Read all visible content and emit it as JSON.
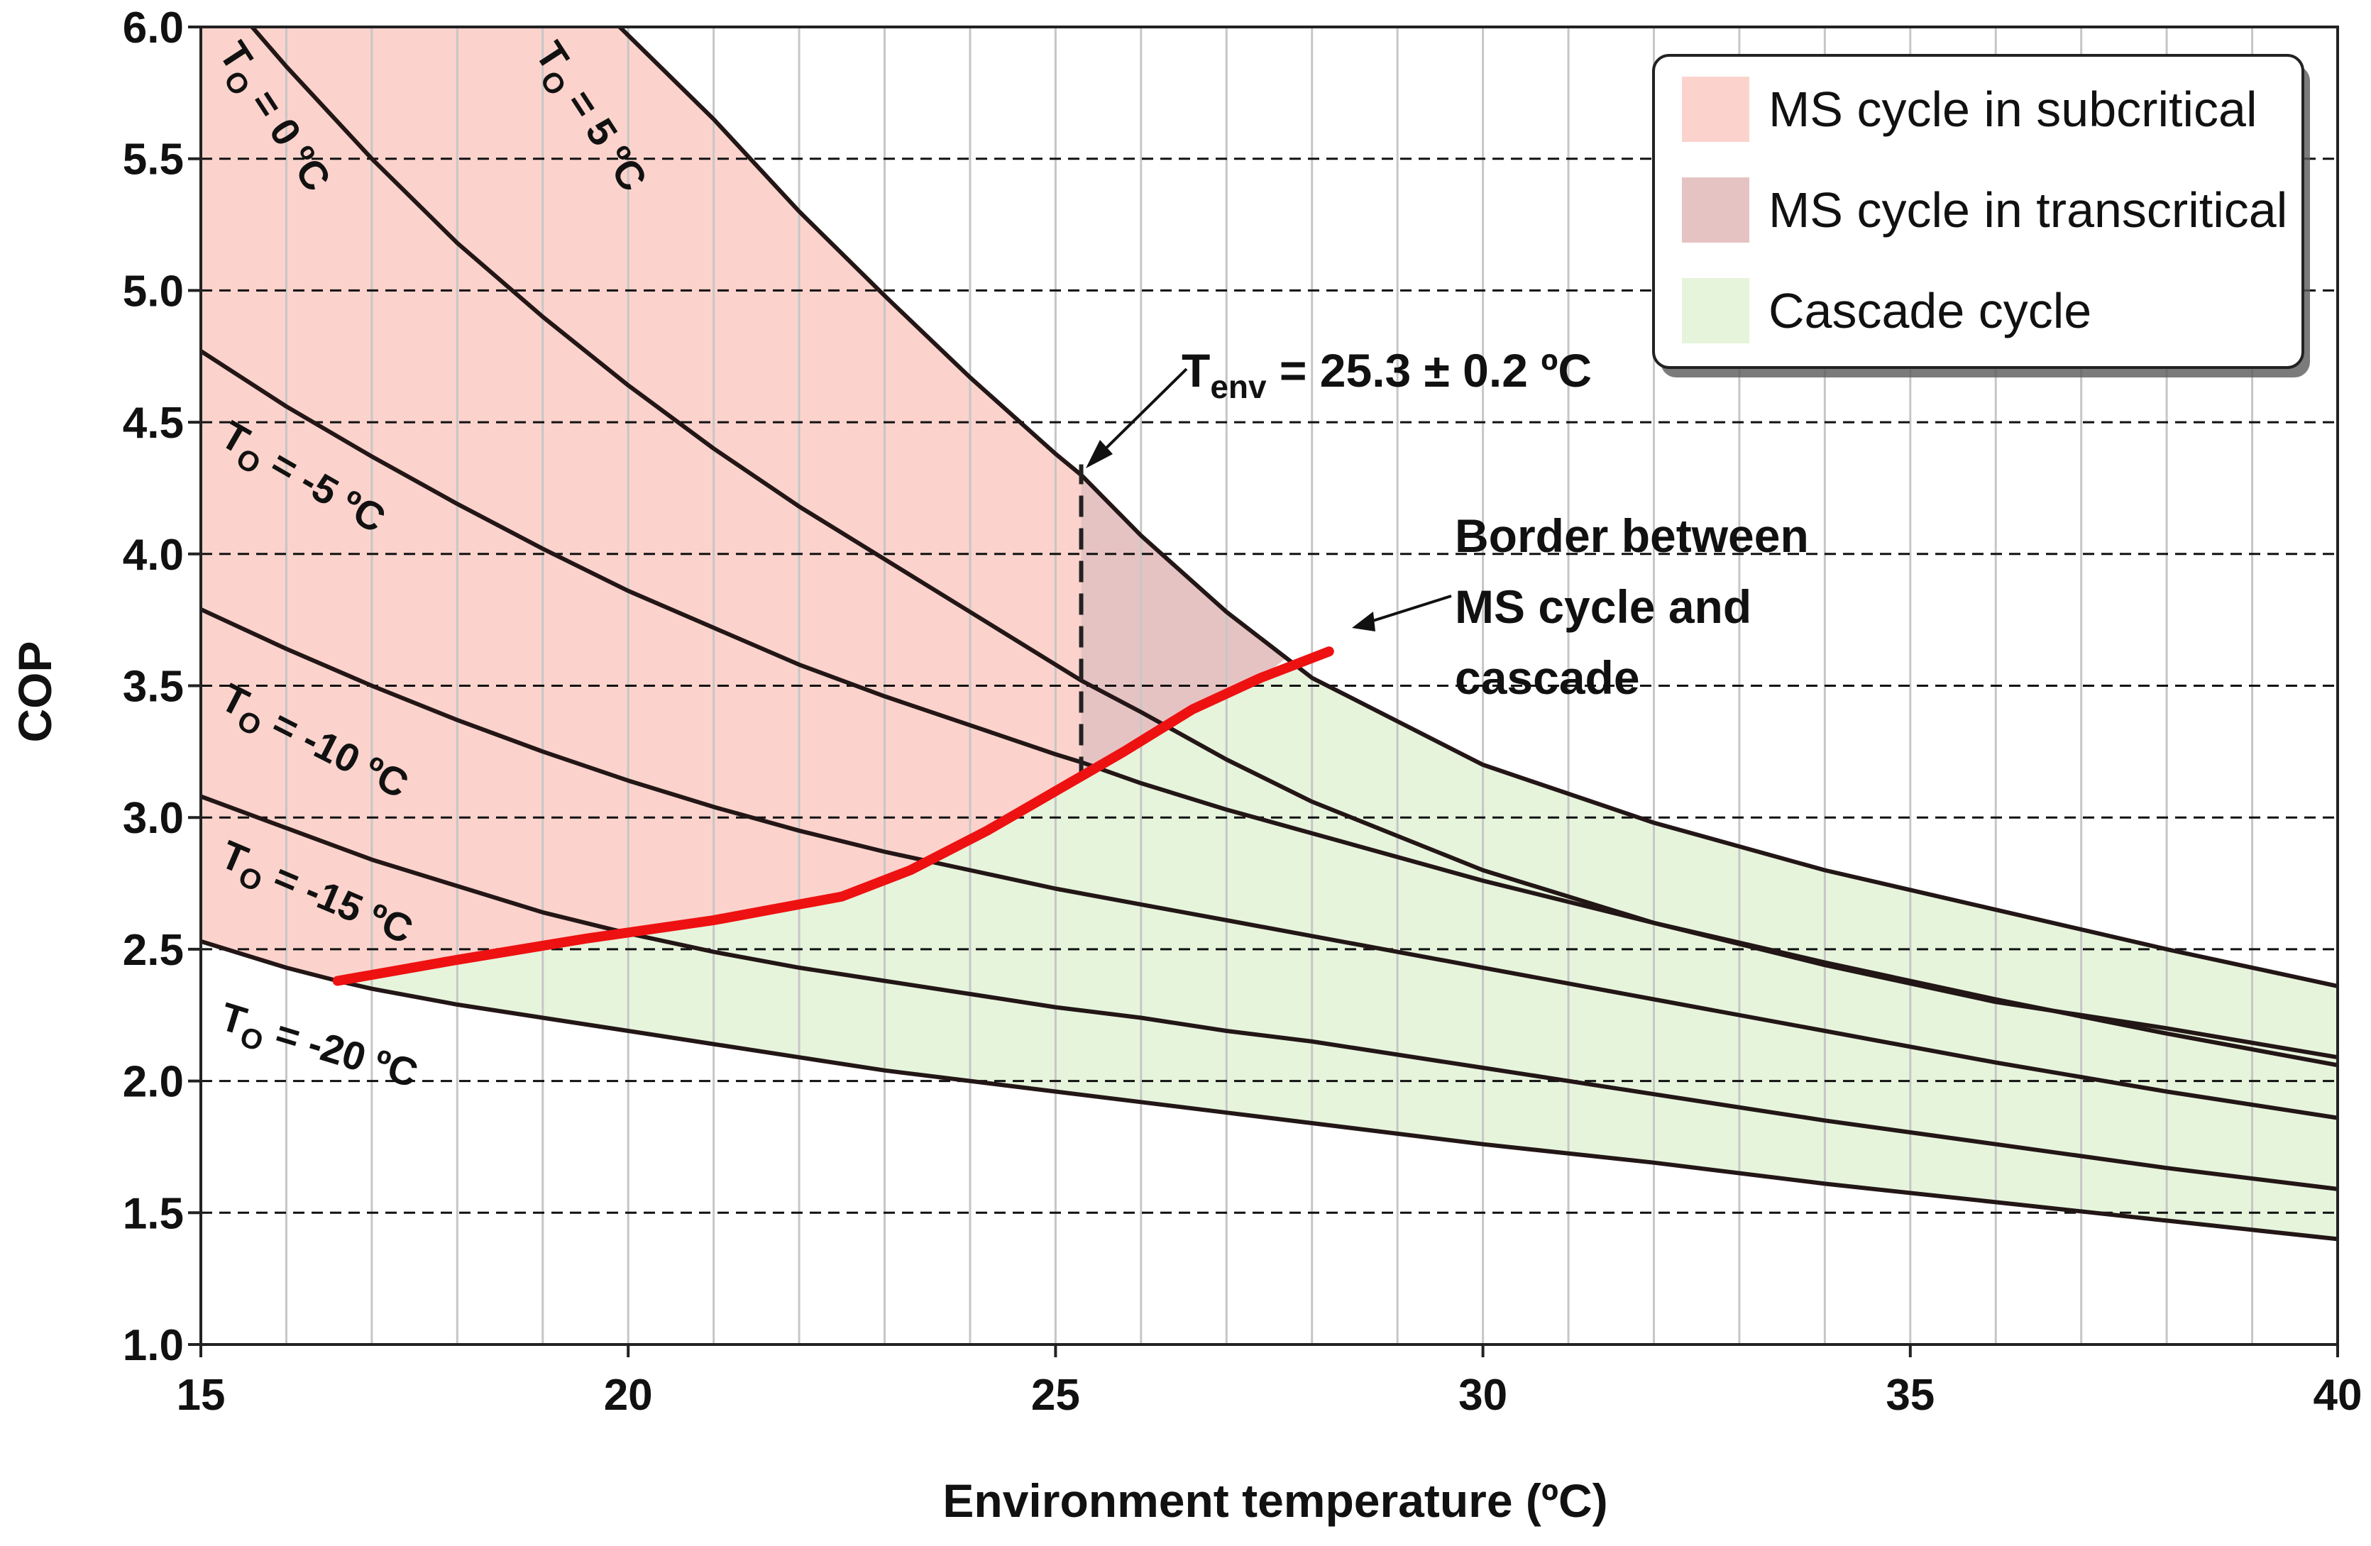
{
  "chart_data": {
    "type": "line",
    "title": "",
    "xlabel": "Environment temperature (ºC)",
    "ylabel": "COP",
    "xlim": [
      15,
      40
    ],
    "ylim": [
      1.0,
      6.0
    ],
    "x_ticks": [
      15,
      20,
      25,
      30,
      35,
      40
    ],
    "x_tick_labels": [
      "15",
      "20",
      "25",
      "30",
      "35",
      "40"
    ],
    "x_minor_step": 1,
    "y_ticks": [
      1.0,
      1.5,
      2.0,
      2.5,
      3.0,
      3.5,
      4.0,
      4.5,
      5.0,
      5.5,
      6.0
    ],
    "y_tick_labels": [
      "1.0",
      "1.5",
      "2.0",
      "2.5",
      "3.0",
      "3.5",
      "4.0",
      "4.5",
      "5.0",
      "5.5",
      "6.0"
    ],
    "grid": {
      "x_minor": true,
      "y_major_dashed": true
    },
    "series": [
      {
        "name": "T_O = 5 ºC",
        "label_sub": "O",
        "label_text": " = 5 ºC",
        "label_anchor": [
          18.9,
          5.9
        ],
        "label_angle": 57,
        "x": [
          19.9,
          21,
          22,
          23,
          24,
          25,
          25.3,
          26,
          27,
          28,
          30,
          32,
          34,
          36,
          38,
          40
        ],
        "y": [
          6.0,
          5.65,
          5.3,
          4.98,
          4.67,
          4.38,
          4.3,
          4.07,
          3.78,
          3.53,
          3.2,
          2.98,
          2.8,
          2.65,
          2.5,
          2.36
        ]
      },
      {
        "name": "T_O = 0 ºC",
        "label_sub": "O",
        "label_text": " = 0 ºC",
        "label_anchor": [
          15.2,
          5.9
        ],
        "label_angle": 57,
        "x": [
          15.6,
          16,
          17,
          18,
          19,
          20,
          21,
          22,
          23,
          24,
          25,
          25.3,
          26,
          27,
          28,
          30,
          32,
          34,
          36,
          38,
          40
        ],
        "y": [
          6.0,
          5.85,
          5.5,
          5.18,
          4.9,
          4.64,
          4.4,
          4.18,
          3.98,
          3.78,
          3.58,
          3.52,
          3.4,
          3.22,
          3.06,
          2.8,
          2.6,
          2.44,
          2.3,
          2.2,
          2.09
        ]
      },
      {
        "name": "T_O = -5 ºC",
        "label_sub": "O",
        "label_text": " = -5 ºC",
        "label_anchor": [
          15.2,
          4.42
        ],
        "label_angle": 30,
        "x": [
          15,
          16,
          17,
          18,
          19,
          20,
          21,
          22,
          23,
          24,
          25,
          25.3,
          26,
          27,
          28,
          30,
          32,
          34,
          36,
          38,
          40
        ],
        "y": [
          4.77,
          4.56,
          4.37,
          4.19,
          4.02,
          3.86,
          3.72,
          3.58,
          3.46,
          3.35,
          3.24,
          3.21,
          3.13,
          3.03,
          2.94,
          2.76,
          2.6,
          2.45,
          2.31,
          2.18,
          2.06
        ]
      },
      {
        "name": "T_O = -10 ºC",
        "label_sub": "O",
        "label_text": " = -10 ºC",
        "label_anchor": [
          15.2,
          3.42
        ],
        "label_angle": 27,
        "x": [
          15,
          16,
          17,
          18,
          19,
          20,
          21,
          22,
          23,
          24,
          25,
          26,
          27,
          28,
          30,
          32,
          34,
          36,
          38,
          40
        ],
        "y": [
          3.79,
          3.64,
          3.5,
          3.37,
          3.25,
          3.14,
          3.04,
          2.95,
          2.87,
          2.8,
          2.73,
          2.67,
          2.61,
          2.55,
          2.43,
          2.31,
          2.19,
          2.07,
          1.96,
          1.86
        ]
      },
      {
        "name": "T_O = -15 ºC",
        "label_sub": "O",
        "label_text": " = -15 ºC",
        "label_anchor": [
          15.2,
          2.82
        ],
        "label_angle": 23,
        "x": [
          15,
          16,
          17,
          18,
          19,
          20,
          21,
          22,
          23,
          24,
          25,
          26,
          27,
          28,
          30,
          32,
          34,
          36,
          38,
          40
        ],
        "y": [
          3.08,
          2.96,
          2.84,
          2.74,
          2.64,
          2.56,
          2.49,
          2.43,
          2.38,
          2.33,
          2.28,
          2.24,
          2.19,
          2.15,
          2.05,
          1.95,
          1.85,
          1.76,
          1.67,
          1.59
        ]
      },
      {
        "name": "T_O = -20 ºC",
        "label_sub": "O",
        "label_text": " = -20 ºC",
        "label_anchor": [
          15.2,
          2.2
        ],
        "label_angle": 17,
        "x": [
          15,
          16,
          16.6,
          17,
          18,
          19,
          20,
          21,
          22,
          23,
          24,
          25,
          26,
          27,
          28,
          30,
          32,
          34,
          36,
          38,
          40
        ],
        "y": [
          2.53,
          2.43,
          2.38,
          2.35,
          2.29,
          2.24,
          2.19,
          2.14,
          2.09,
          2.04,
          2.0,
          1.96,
          1.92,
          1.88,
          1.84,
          1.76,
          1.69,
          1.61,
          1.54,
          1.47,
          1.4
        ]
      }
    ],
    "border_curve": {
      "name": "Border between MS cycle and cascade",
      "color": "#ee1111",
      "x": [
        16.6,
        18,
        19.5,
        21,
        22.5,
        23.3,
        24.2,
        25,
        25.8,
        26.6,
        27.4,
        28.2
      ],
      "y": [
        2.38,
        2.46,
        2.54,
        2.61,
        2.7,
        2.8,
        2.95,
        3.1,
        3.25,
        3.41,
        3.53,
        3.63
      ]
    },
    "t_env_line": {
      "x": 25.3,
      "y_range": [
        3.15,
        4.34
      ]
    },
    "regions": [
      {
        "name": "MS cycle in subcritical",
        "color": "#fbd3cc"
      },
      {
        "name": "MS cycle in transcritical",
        "color": "#e6c3c3"
      },
      {
        "name": "Cascade cycle",
        "color": "#e6f4dc"
      }
    ],
    "annotations": {
      "t_env_prefix": "T",
      "t_env_sub": "env",
      "t_env_value": " = 25.3 ± 0.2 ºC",
      "border_lines": [
        "Border between",
        "MS cycle and",
        "cascade"
      ]
    },
    "label_prefix": "T",
    "legend": {
      "position": "top-right",
      "entries": [
        "MS cycle in subcritical",
        "MS cycle in transcritical",
        "Cascade cycle"
      ]
    }
  }
}
